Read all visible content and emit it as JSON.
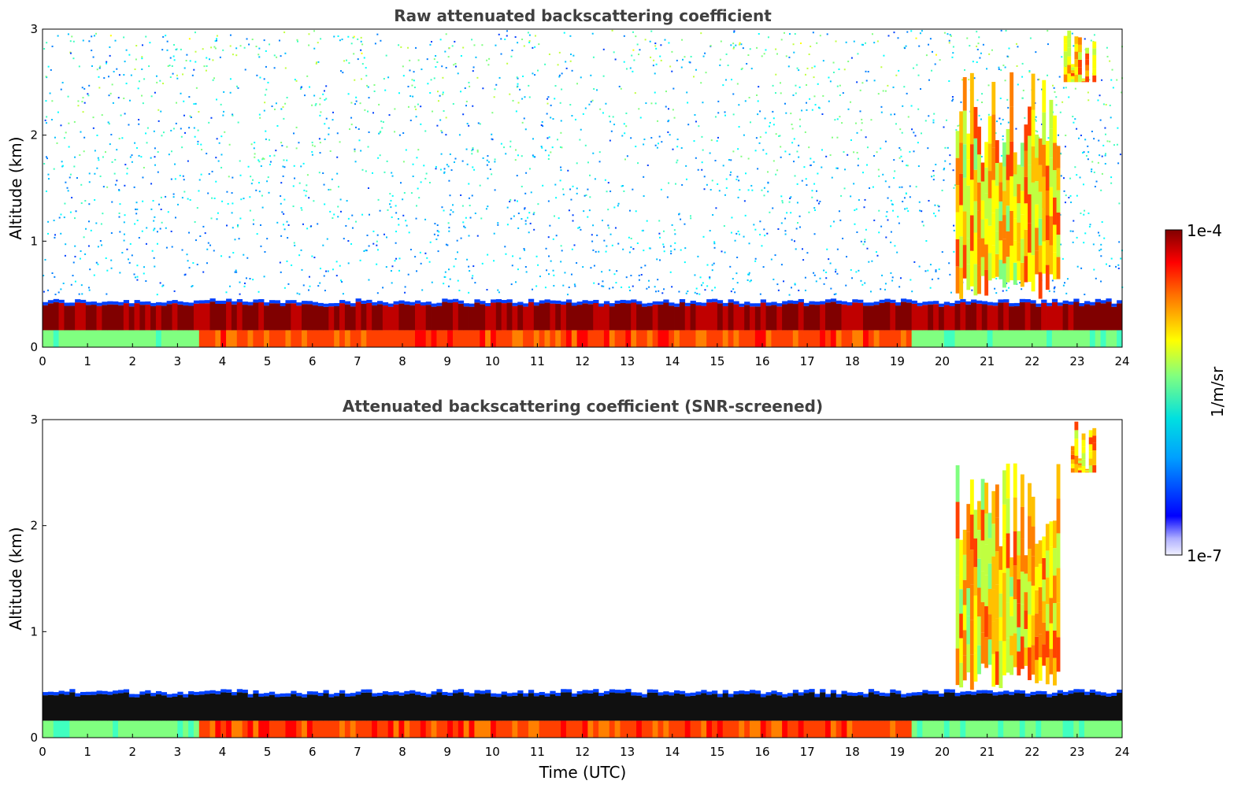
{
  "chart_data": [
    {
      "type": "heatmap",
      "title": "Raw attenuated backscattering coefficient",
      "xlabel": "",
      "ylabel": "Altitude (km)",
      "xlim": [
        0,
        24
      ],
      "ylim": [
        0,
        3
      ],
      "xticks": [
        "0",
        "1",
        "2",
        "3",
        "4",
        "5",
        "6",
        "7",
        "8",
        "9",
        "10",
        "11",
        "12",
        "13",
        "14",
        "15",
        "16",
        "17",
        "18",
        "19",
        "20",
        "21",
        "22",
        "23",
        "24"
      ],
      "yticks": [
        "0",
        "1",
        "2",
        "3"
      ],
      "colorscale": "jet",
      "color_scale_type": "log",
      "zlim": [
        1e-07,
        0.0001
      ],
      "features": {
        "boundary_layer_top_km": 0.4,
        "high_cloud_intervals_utc": [
          [
            20.3,
            22.6
          ],
          [
            22.7,
            23.4
          ]
        ],
        "near_surface_high_signal_interval_utc": [
          3.4,
          19.3
        ]
      }
    },
    {
      "type": "heatmap",
      "title": "Attenuated backscattering coefficient (SNR-screened)",
      "xlabel": "Time (UTC)",
      "ylabel": "Altitude (km)",
      "xlim": [
        0,
        24
      ],
      "ylim": [
        0,
        3
      ],
      "xticks": [
        "0",
        "1",
        "2",
        "3",
        "4",
        "5",
        "6",
        "7",
        "8",
        "9",
        "10",
        "11",
        "12",
        "13",
        "14",
        "15",
        "16",
        "17",
        "18",
        "19",
        "20",
        "21",
        "22",
        "23",
        "24"
      ],
      "yticks": [
        "0",
        "1",
        "2",
        "3"
      ],
      "colorscale": "jet",
      "color_scale_type": "log",
      "zlim": [
        1e-07,
        0.0001
      ],
      "features": {
        "boundary_layer_top_km": 0.4,
        "high_cloud_intervals_utc": [
          [
            20.3,
            22.6
          ],
          [
            22.7,
            23.4
          ]
        ],
        "near_surface_high_signal_interval_utc": [
          3.4,
          19.3
        ]
      }
    }
  ],
  "colorbar": {
    "label": "1/m/sr",
    "max_label": "1e-4",
    "min_label": "1e-7",
    "colormap": "jet"
  },
  "colors": {
    "title": "#404040",
    "axes": "#000000",
    "background": "#ffffff"
  }
}
